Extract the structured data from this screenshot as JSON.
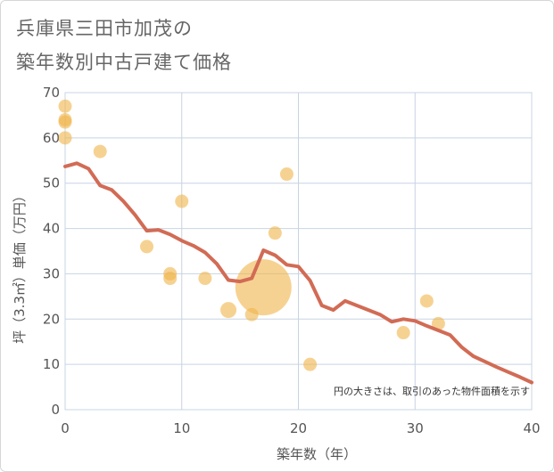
{
  "chart_data": {
    "type": "scatter",
    "title_line1": "兵庫県三田市加茂の",
    "title_line2": "築年数別中古戸建て価格",
    "xlabel": "築年数（年）",
    "ylabel": "坪（3.3㎡）単価（万円）",
    "xlim": [
      0,
      40
    ],
    "ylim": [
      0,
      70
    ],
    "x_ticks": [
      "0",
      "10",
      "20",
      "30",
      "40"
    ],
    "y_ticks": [
      "0",
      "10",
      "20",
      "30",
      "40",
      "50",
      "60",
      "70"
    ],
    "grid": true,
    "note": "円の大きさは、取引のあった物件面積を示す",
    "scatter_color": "#f0b44a",
    "line_color": "#d26b55",
    "points": [
      {
        "x": 0,
        "y": 67,
        "size": 1
      },
      {
        "x": 0,
        "y": 64,
        "size": 1
      },
      {
        "x": 0,
        "y": 63.5,
        "size": 1
      },
      {
        "x": 0,
        "y": 60,
        "size": 1
      },
      {
        "x": 3,
        "y": 57,
        "size": 1
      },
      {
        "x": 7,
        "y": 36,
        "size": 1
      },
      {
        "x": 9,
        "y": 30,
        "size": 1
      },
      {
        "x": 9,
        "y": 29,
        "size": 1
      },
      {
        "x": 10,
        "y": 46,
        "size": 1
      },
      {
        "x": 12,
        "y": 29,
        "size": 1
      },
      {
        "x": 14,
        "y": 22,
        "size": 1.2
      },
      {
        "x": 16,
        "y": 21,
        "size": 1
      },
      {
        "x": 17,
        "y": 27,
        "size": 4.2
      },
      {
        "x": 18,
        "y": 39,
        "size": 1
      },
      {
        "x": 19,
        "y": 52,
        "size": 1
      },
      {
        "x": 21,
        "y": 10,
        "size": 1
      },
      {
        "x": 29,
        "y": 17,
        "size": 1
      },
      {
        "x": 31,
        "y": 24,
        "size": 1
      },
      {
        "x": 32,
        "y": 19,
        "size": 1
      }
    ],
    "trend_line": {
      "x": [
        0,
        1,
        2,
        3,
        4,
        5,
        6,
        7,
        8,
        9,
        10,
        11,
        12,
        13,
        14,
        15,
        16,
        17,
        18,
        19,
        20,
        21,
        22,
        23,
        24,
        25,
        26,
        27,
        28,
        29,
        30,
        31,
        32,
        33,
        34,
        35,
        36,
        37,
        38,
        39,
        40
      ],
      "y": [
        53.7,
        54.4,
        53.2,
        49.5,
        48.5,
        46.0,
        43.0,
        39.5,
        39.7,
        38.7,
        37.3,
        36.2,
        34.7,
        32.2,
        28.6,
        28.3,
        29.0,
        35.2,
        34.1,
        32.0,
        31.6,
        28.5,
        23.0,
        22.0,
        24.0,
        23.0,
        22.0,
        21.0,
        19.4,
        20.0,
        19.6,
        18.5,
        17.5,
        16.5,
        13.8,
        11.8,
        10.6,
        9.4,
        8.3,
        7.2,
        6.0
      ]
    }
  }
}
